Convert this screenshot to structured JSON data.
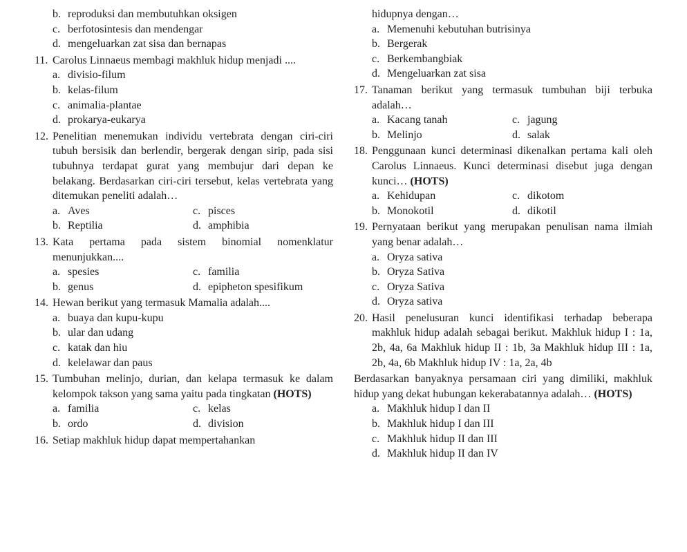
{
  "col1": {
    "q10opts": [
      {
        "l": "b.",
        "t": "reproduksi dan membutuhkan oksigen"
      },
      {
        "l": "c.",
        "t": "berfotosintesis dan mendengar"
      },
      {
        "l": "d.",
        "t": "mengeluarkan zat sisa dan bernapas"
      }
    ],
    "q11": {
      "n": "11.",
      "t": "Carolus Linnaeus membagi makhluk hidup menjadi ....",
      "opts": [
        {
          "l": "a.",
          "t": "divisio-filum"
        },
        {
          "l": "b.",
          "t": "kelas-filum"
        },
        {
          "l": "c.",
          "t": "animalia-plantae"
        },
        {
          "l": "d.",
          "t": "prokarya-eukarya"
        }
      ]
    },
    "q12": {
      "n": "12.",
      "t": "Penelitian menemukan individu vertebrata dengan ciri-ciri tubuh bersisik dan berlendir, bergerak dengan sirip, pada sisi tubuhnya terdapat gurat yang membujur dari depan ke belakang. Berdasarkan ciri-ciri tersebut, kelas vertebrata yang ditemukan peneliti adalah…",
      "pairs": [
        {
          "l1": "a.",
          "t1": "Aves",
          "l2": "c.",
          "t2": "pisces"
        },
        {
          "l1": "b.",
          "t1": "Reptilia",
          "l2": "d.",
          "t2": "amphibia"
        }
      ]
    },
    "q13": {
      "n": "13.",
      "t": "Kata pertama pada sistem binomial nomenklatur menunjukkan....",
      "pairs": [
        {
          "l1": "a.",
          "t1": "spesies",
          "l2": "c.",
          "t2": "familia"
        },
        {
          "l1": "b.",
          "t1": "genus",
          "l2": "d.",
          "t2": "epipheton spesifikum"
        }
      ]
    },
    "q14": {
      "n": "14.",
      "t": "Hewan berikut yang termasuk Mamalia adalah....",
      "opts": [
        {
          "l": "a.",
          "t": "buaya dan kupu-kupu"
        },
        {
          "l": "b.",
          "t": "ular dan udang"
        },
        {
          "l": "c.",
          "t": "katak dan hiu"
        },
        {
          "l": "d.",
          "t": "kelelawar dan paus"
        }
      ]
    },
    "q15": {
      "n": "15.",
      "t1": "Tumbuhan melinjo, durian, dan kelapa termasuk ke dalam kelompok takson yang sama yaitu pada tingkatan",
      "hots": "(HOTS)",
      "pairs": [
        {
          "l1": "a.",
          "t1": "familia",
          "l2": "c.",
          "t2": "kelas"
        },
        {
          "l1": "b.",
          "t1": "ordo",
          "l2": "d.",
          "t2": "division"
        }
      ]
    },
    "q16": {
      "n": "16.",
      "t": "Setiap makhluk hidup dapat mempertahankan"
    }
  },
  "col2": {
    "q16cont": "hidupnya dengan…",
    "q16opts": [
      {
        "l": "a.",
        "t": "Memenuhi kebutuhan butrisinya"
      },
      {
        "l": "b.",
        "t": "Bergerak"
      },
      {
        "l": "c.",
        "t": "Berkembangbiak"
      },
      {
        "l": "d.",
        "t": "Mengeluarkan zat sisa"
      }
    ],
    "q17": {
      "n": "17.",
      "t": "Tanaman berikut yang termasuk tumbuhan biji terbuka adalah…",
      "pairs": [
        {
          "l1": "a.",
          "t1": "Kacang tanah",
          "l2": "c.",
          "t2": "jagung"
        },
        {
          "l1": "b.",
          "t1": "Melinjo",
          "l2": "d.",
          "t2": "salak"
        }
      ]
    },
    "q18": {
      "n": "18.",
      "t1": "Penggunaan kunci determinasi dikenalkan pertama kali oleh Carolus Linnaeus. Kunci determinasi disebut juga dengan kunci…",
      "hots": "(HOTS)",
      "pairs": [
        {
          "l1": "a.",
          "t1": "Kehidupan",
          "l2": "c.",
          "t2": "dikotom"
        },
        {
          "l1": "b.",
          "t1": "Monokotil",
          "l2": "d.",
          "t2": "dikotil"
        }
      ]
    },
    "q19": {
      "n": "19.",
      "t": "Pernyataan berikut yang merupakan penulisan nama ilmiah yang benar adalah…",
      "opts": [
        {
          "l": "a.",
          "t": "Oryza sativa"
        },
        {
          "l": "b.",
          "t": "Oryza Sativa"
        },
        {
          "l": "c.",
          "t": "Oryza Sativa"
        },
        {
          "l": "d.",
          "t": "Oryza sativa"
        }
      ]
    },
    "q20": {
      "n": "20.",
      "t": "Hasil penelusuran kunci identifikasi terhadap beberapa makhluk hidup adalah sebagai berikut. Makhluk hidup I   :   1a, 2b, 4a, 6a Makhluk hidup II : 1b,    3a Makhluk hidup III :  1a,  2b, 4a, 6b Makhluk hidup IV : 1a, 2a, 4b"
    },
    "q20para1": "Berdasarkan banyaknya persamaan ciri yang dimiliki, makhluk hidup yang dekat hubungan kekerabatannya adalah…",
    "q20hots": "(HOTS)",
    "q20opts": [
      {
        "l": "a.",
        "t": "Makhluk hidup I dan II"
      },
      {
        "l": "b.",
        "t": "Makhluk hidup I dan III"
      },
      {
        "l": "c.",
        "t": "Makhluk hidup II dan III"
      },
      {
        "l": "d.",
        "t": "Makhluk hidup II dan IV"
      }
    ]
  }
}
